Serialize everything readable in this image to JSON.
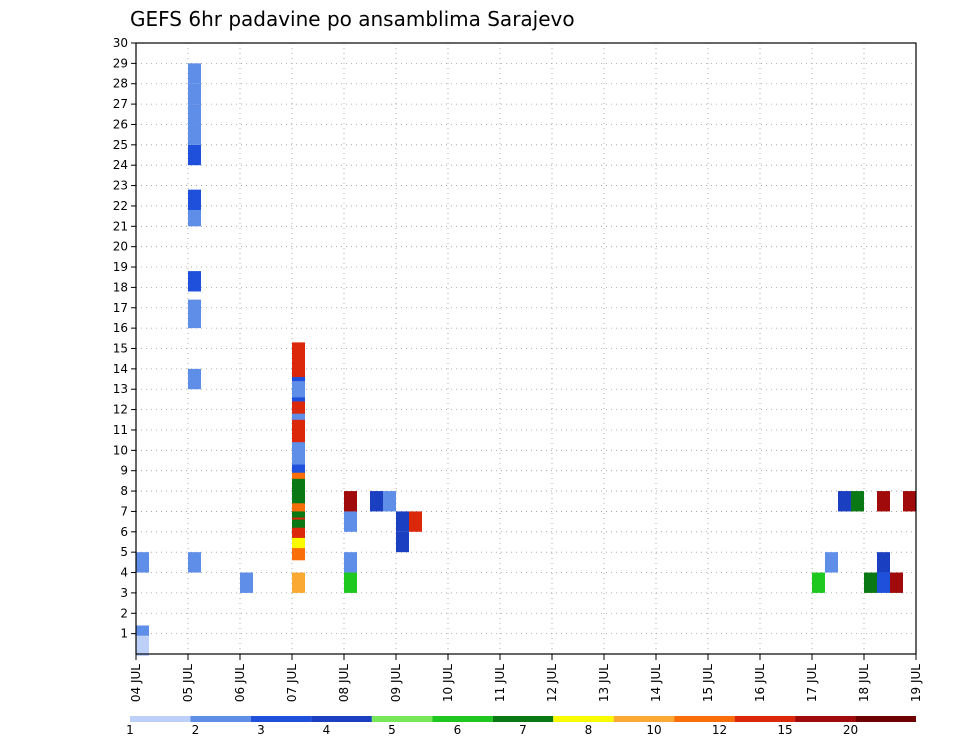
{
  "chart_data": {
    "type": "heatmap",
    "title": "GEFS 6hr padavine po ansamblima Sarajevo",
    "x_tick_labels": [
      "04 JUL",
      "05 JUL",
      "06 JUL",
      "07 JUL",
      "08 JUL",
      "09 JUL",
      "10 JUL",
      "11 JUL",
      "12 JUL",
      "13 JUL",
      "14 JUL",
      "15 JUL",
      "16 JUL",
      "17 JUL",
      "18 JUL",
      "19 JUL"
    ],
    "x_range_days": [
      0,
      15
    ],
    "y_tick_labels": [
      "1",
      "2",
      "3",
      "4",
      "5",
      "6",
      "7",
      "8",
      "9",
      "10",
      "11",
      "12",
      "13",
      "14",
      "15",
      "16",
      "17",
      "18",
      "19",
      "20",
      "21",
      "22",
      "23",
      "24",
      "25",
      "26",
      "27",
      "28",
      "29",
      "30"
    ],
    "y_range": [
      0,
      30
    ],
    "grid": "dotted",
    "colorbar": {
      "labels": [
        "1",
        "2",
        "3",
        "4",
        "5",
        "6",
        "7",
        "8",
        "10",
        "12",
        "15",
        "20"
      ],
      "colors": [
        "#bcd0fa",
        "#5f8ee8",
        "#1e50dc",
        "#1a3fc0",
        "#78e85a",
        "#1ec81e",
        "#0a7814",
        "#fafa00",
        "#faaa32",
        "#fa6e0a",
        "#dc280a",
        "#a00a0a",
        "#6e0000"
      ]
    },
    "cells": [
      [
        0.9,
        0,
        1
      ],
      [
        0.8,
        0,
        1
      ],
      [
        0.4,
        0,
        0
      ],
      [
        5.5,
        3,
        1
      ],
      [
        5.1,
        3,
        9
      ],
      [
        5.7,
        3,
        7
      ],
      [
        6.2,
        3,
        10
      ],
      [
        6.4,
        3,
        10
      ],
      [
        6.6,
        3,
        10
      ],
      [
        6.9,
        3,
        6
      ],
      [
        6.7,
        3,
        6
      ],
      [
        7.1,
        3,
        10
      ],
      [
        7.2,
        3,
        6
      ],
      [
        7.5,
        3,
        9
      ],
      [
        7.9,
        3,
        6
      ],
      [
        8.2,
        3,
        6
      ],
      [
        9.1,
        3,
        9
      ],
      [
        9.4,
        3,
        2
      ],
      [
        9.6,
        3,
        2
      ],
      [
        9.8,
        3,
        1
      ],
      [
        10.1,
        3,
        1
      ],
      [
        10.9,
        3,
        10
      ],
      [
        11.1,
        3,
        10
      ],
      [
        11.6,
        3,
        10
      ],
      [
        12.0,
        3,
        1
      ],
      [
        12.3,
        3,
        10
      ],
      [
        12.6,
        3,
        10
      ],
      [
        12.9,
        3,
        2
      ],
      [
        13.1,
        3,
        1
      ],
      [
        13.7,
        3,
        1
      ],
      [
        13.9,
        3,
        2
      ],
      [
        14.1,
        3,
        10
      ],
      [
        14.4,
        3,
        10
      ],
      [
        14.8,
        3,
        10
      ],
      [
        4.5,
        0,
        1
      ],
      [
        4.5,
        1,
        1
      ],
      [
        13.5,
        1,
        1
      ],
      [
        16.5,
        1,
        1
      ],
      [
        16.9,
        1,
        1
      ],
      [
        18.3,
        1,
        2
      ],
      [
        21.5,
        1,
        1
      ],
      [
        22.3,
        1,
        2
      ],
      [
        24.5,
        1,
        2
      ],
      [
        25.5,
        1,
        1
      ],
      [
        26.5,
        1,
        1
      ],
      [
        27.5,
        1,
        1
      ],
      [
        28.5,
        1,
        1
      ],
      [
        3.5,
        2,
        1
      ],
      [
        3.5,
        3,
        8
      ],
      [
        3.5,
        4,
        5
      ],
      [
        3.5,
        13,
        5
      ],
      [
        3.5,
        14,
        6
      ],
      [
        3.5,
        14.25,
        2
      ],
      [
        3.5,
        14.5,
        11
      ],
      [
        4.5,
        4,
        1
      ],
      [
        4.5,
        13.25,
        1
      ],
      [
        4.5,
        14.25,
        3
      ],
      [
        6.5,
        4,
        1
      ],
      [
        7.5,
        4,
        11
      ],
      [
        7.5,
        4.5,
        3
      ],
      [
        7.5,
        4.75,
        1
      ],
      [
        7.5,
        13.5,
        3
      ],
      [
        7.5,
        13.75,
        6
      ],
      [
        7.5,
        14.25,
        11
      ],
      [
        7.5,
        14.75,
        11
      ],
      [
        5.5,
        5,
        3
      ],
      [
        6.5,
        5,
        3
      ],
      [
        6.5,
        5.25,
        10
      ]
    ]
  }
}
